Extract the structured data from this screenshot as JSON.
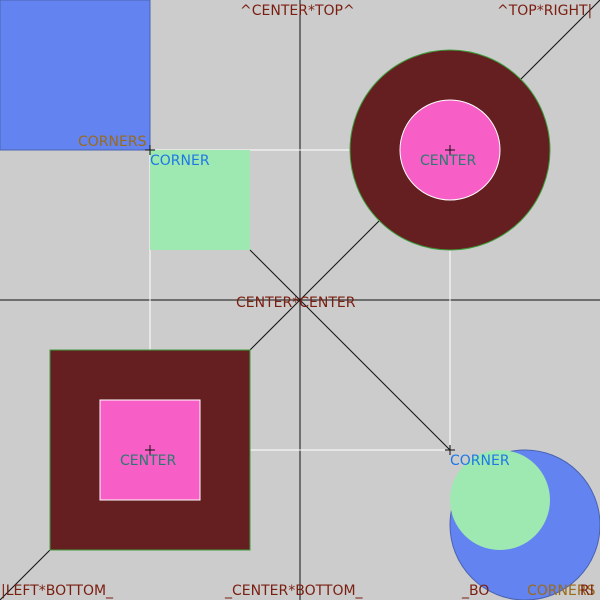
{
  "colors": {
    "background": "#cccccc",
    "blue": "#6384f0",
    "mint": "#9de9b1",
    "maroon": "#661f20",
    "pink": "#f75ec6",
    "outline_green": "#3c9e3c",
    "label_dark_red": "#7a1e10",
    "label_gold": "#9a6a18",
    "label_blue": "#1e78e6",
    "label_teal": "#2b7a70"
  },
  "labels": {
    "center_top": "^CENTER*TOP^",
    "top_right": "^TOP*RIGHT|",
    "corners_top": "CORNERS",
    "corner_mint_square": "CORNER",
    "center_circle": "CENTER",
    "center_center": "CENTER*CENTER",
    "center_square": "CENTER",
    "corner_mint_circle": "CORNER",
    "left_bottom": "|LEFT*BOTTOM_",
    "center_bottom": "_CENTER*BOTTOM_",
    "bottom_partial": "_BO",
    "corners_bottom": "CORNERS",
    "right_partial": "RI"
  }
}
